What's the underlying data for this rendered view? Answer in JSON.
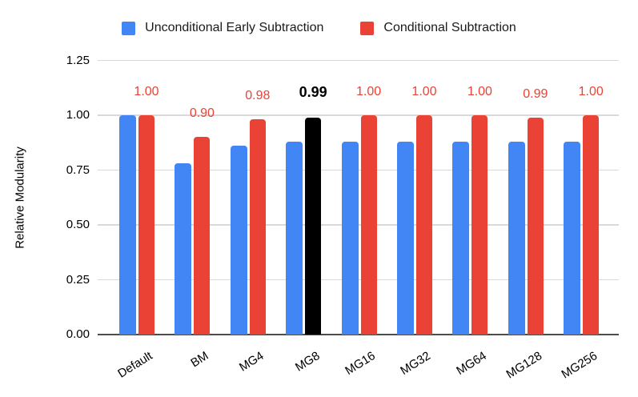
{
  "chart_data": {
    "type": "bar",
    "title": "",
    "xlabel": "",
    "ylabel": "Relative Modularity",
    "categories": [
      "Default",
      "BM",
      "MG4",
      "MG8",
      "MG16",
      "MG32",
      "MG64",
      "MG128",
      "MG256"
    ],
    "series": [
      {
        "name": "Unconditional Early Subtraction",
        "color": "#4285F4",
        "values": [
          1.0,
          0.78,
          0.86,
          0.88,
          0.88,
          0.88,
          0.88,
          0.88,
          0.88
        ]
      },
      {
        "name": "Conditional Subtraction",
        "color": "#EA4335",
        "values": [
          1.0,
          0.9,
          0.98,
          0.99,
          1.0,
          1.0,
          1.0,
          0.99,
          1.0
        ]
      }
    ],
    "annotations": {
      "applies_to_series": "Conditional Subtraction",
      "labels": [
        "1.00",
        "0.90",
        "0.98",
        "0.99",
        "1.00",
        "1.00",
        "1.00",
        "0.99",
        "1.00"
      ],
      "default_color": "#EA4335",
      "highlight_index": 3,
      "highlight_color": "#000000",
      "highlight_bold": true
    },
    "highlight": {
      "category": "MG8",
      "series": "Conditional Subtraction",
      "bar_color": "#000000"
    },
    "yticks": [
      "0.00",
      "0.25",
      "0.50",
      "0.75",
      "1.00",
      "1.25"
    ],
    "ylim": [
      0,
      1.25
    ],
    "grid": true,
    "legend_position": "top",
    "colors": {
      "gridline": "#D9D9D9",
      "axis_line": "#4D4D4D",
      "tick_text": "#000000"
    }
  }
}
